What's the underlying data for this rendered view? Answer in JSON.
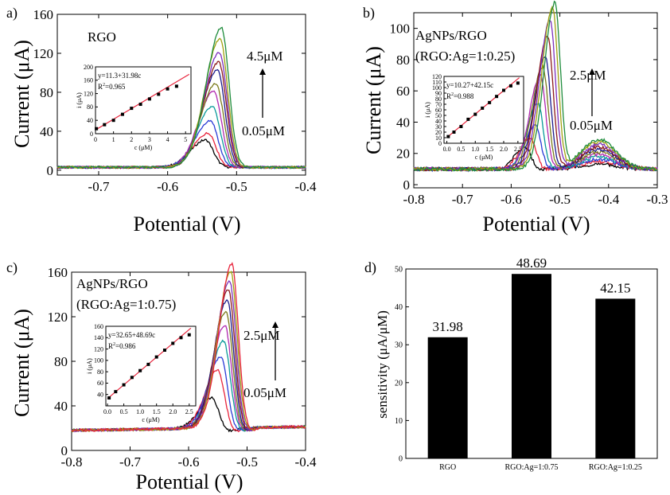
{
  "chart_data": [
    {
      "panel": "a)",
      "type": "line",
      "label": "RGO",
      "xlabel": "Potential (V)",
      "ylabel": "Current (μA)",
      "xlim": [
        -0.76,
        -0.4
      ],
      "ylim": [
        -5,
        160
      ],
      "xticks": [
        -0.7,
        -0.6,
        -0.5,
        -0.4
      ],
      "xtick_labels": [
        "-0.7",
        "-0.6",
        "-0.5",
        "-0.4"
      ],
      "yticks": [
        0,
        40,
        80,
        120,
        160
      ],
      "ytick_labels": [
        "0",
        "40",
        "80",
        "120",
        "160"
      ],
      "baseline": 3,
      "peak_x": [
        -0.545,
        -0.541,
        -0.538,
        -0.535,
        -0.533,
        -0.53,
        -0.528,
        -0.526,
        -0.525,
        -0.524,
        -0.522
      ],
      "peak_heights": [
        28,
        35,
        48,
        62,
        78,
        86,
        100,
        108,
        118,
        132,
        143
      ],
      "colors": [
        "#000000",
        "#e8243c",
        "#2a3bd6",
        "#0a9a9a",
        "#b028b0",
        "#7a7a1a",
        "#1a1a8c",
        "#8c1a1a",
        "#7b2fbd",
        "#a1a110",
        "#1e8c3c"
      ],
      "annotation_top": "4.5μM",
      "annotation_bottom": "0.05μM",
      "inset": {
        "equation": "y=11.3+31.98c",
        "r2_prefix": "R",
        "r2_exp": "2",
        "r2_value": "=0.965",
        "xlabel": "c (μM)",
        "ylabel": "i (μA)",
        "xlim": [
          0,
          5.3
        ],
        "ylim": [
          0,
          200
        ],
        "xticks": [
          0,
          1,
          2,
          3,
          4,
          5
        ],
        "xtick_labels": [
          "0",
          "1",
          "2",
          "3",
          "4",
          "5"
        ],
        "yticks": [
          0,
          40,
          80,
          120,
          160,
          200
        ],
        "ytick_labels": [
          "0",
          "40",
          "80",
          "120",
          "160",
          "200"
        ],
        "points_x": [
          0.05,
          0.5,
          1,
          1.5,
          2,
          2.5,
          3,
          3.5,
          4,
          4.5
        ],
        "points_y": [
          15,
          27,
          40,
          58,
          76,
          88,
          104,
          118,
          134,
          142
        ],
        "fit_intercept": 11.3,
        "fit_slope": 31.98,
        "fit_range": [
          0,
          5.2
        ]
      }
    },
    {
      "panel": "b)",
      "type": "line",
      "label_line1": "AgNPs/RGO",
      "label_line2": "(RGO:Ag=1:0.25)",
      "xlabel": "Potential (V)",
      "ylabel": "Current (μA)",
      "xlim": [
        -0.8,
        -0.3
      ],
      "ylim": [
        -2,
        110
      ],
      "xticks": [
        -0.8,
        -0.7,
        -0.6,
        -0.5,
        -0.4,
        -0.3
      ],
      "xtick_labels": [
        "-0.8",
        "-0.7",
        "-0.6",
        "-0.5",
        "-0.4",
        "-0.3"
      ],
      "yticks": [
        0,
        20,
        40,
        60,
        80,
        100
      ],
      "ytick_labels": [
        "0",
        "20",
        "40",
        "60",
        "80",
        "100"
      ],
      "baseline": 10,
      "peak_x": [
        -0.57,
        -0.56,
        -0.55,
        -0.545,
        -0.54,
        -0.535,
        -0.53,
        -0.525,
        -0.52,
        -0.515,
        -0.51
      ],
      "peak_heights": [
        14,
        20,
        28,
        42,
        60,
        65,
        72,
        85,
        95,
        103,
        106
      ],
      "colors": [
        "#000000",
        "#e8243c",
        "#2a3bd6",
        "#0a9a9a",
        "#b028b0",
        "#7a7a1a",
        "#1a1a8c",
        "#8c1a1a",
        "#7b2fbd",
        "#a1a110",
        "#1e8c3c"
      ],
      "annotation_top": "2.5μM",
      "annotation_bottom": "0.05μM",
      "inset": {
        "equation": "y=10.27+42.15c",
        "r2_prefix": "R",
        "r2_exp": "2",
        "r2_value": "=0.988",
        "xlabel": "c (μM)",
        "ylabel": "i (μA)",
        "xlim": [
          -0.1,
          2.7
        ],
        "ylim": [
          0,
          120
        ],
        "xticks": [
          0,
          0.5,
          1,
          1.5,
          2,
          2.5
        ],
        "xtick_labels": [
          "0.0",
          "0.5",
          "1.0",
          "1.5",
          "2.0",
          "2.5"
        ],
        "yticks": [
          0,
          10,
          20,
          30,
          40,
          50,
          60,
          70,
          80,
          90,
          100,
          110,
          120
        ],
        "ytick_labels": [
          "0",
          "10",
          "20",
          "30",
          "40",
          "50",
          "60",
          "70",
          "80",
          "90",
          "100",
          "110",
          "120"
        ],
        "points_x": [
          0.05,
          0.25,
          0.5,
          0.75,
          1,
          1.25,
          1.5,
          1.75,
          2,
          2.25,
          2.5
        ],
        "points_y": [
          12,
          20,
          30,
          43,
          52,
          63,
          73,
          84,
          95,
          103,
          108
        ],
        "fit_intercept": 10.27,
        "fit_slope": 42.15,
        "fit_range": [
          0,
          2.55
        ]
      }
    },
    {
      "panel": "c)",
      "type": "line",
      "label_line1": "AgNPs/RGO",
      "label_line2": "(RGO:Ag=1:0.75)",
      "xlabel": "Potential (V)",
      "ylabel": "Current (μA)",
      "xlim": [
        -0.8,
        -0.4
      ],
      "ylim": [
        0,
        160
      ],
      "xticks": [
        -0.8,
        -0.7,
        -0.6,
        -0.5,
        -0.4
      ],
      "xtick_labels": [
        "-0.8",
        "-0.7",
        "-0.6",
        "-0.5",
        "-0.4"
      ],
      "yticks": [
        0,
        40,
        80,
        120,
        160
      ],
      "ytick_labels": [
        "0",
        "40",
        "80",
        "120",
        "160"
      ],
      "baseline": 18,
      "peak_x": [
        -0.56,
        -0.55,
        -0.545,
        -0.54,
        -0.538,
        -0.536,
        -0.534,
        -0.532,
        -0.53,
        -0.528,
        -0.526
      ],
      "peak_heights": [
        27,
        52,
        64,
        78,
        92,
        105,
        115,
        124,
        132,
        140,
        147
      ],
      "colors": [
        "#000000",
        "#e8243c",
        "#2a3bd6",
        "#0a9a9a",
        "#b028b0",
        "#7a7a1a",
        "#1a1a8c",
        "#8c1a1a",
        "#7b2fbd",
        "#a1a110",
        "#e8243c"
      ],
      "annotation_top": "2.5μM",
      "annotation_bottom": "0.05μM",
      "inset": {
        "equation": "y=32.65+48.69c",
        "r2_prefix": "R",
        "r2_exp": "2",
        "r2_value": "=0.986",
        "xlabel": "c (μM)",
        "ylabel": "i (μA)",
        "xlim": [
          -0.05,
          2.7
        ],
        "ylim": [
          20,
          160
        ],
        "xticks": [
          0,
          0.5,
          1,
          1.5,
          2,
          2.5
        ],
        "xtick_labels": [
          "0.0",
          "0.5",
          "1.0",
          "1.5",
          "2.0",
          "2.5"
        ],
        "yticks": [
          40,
          60,
          80,
          100,
          120,
          140,
          160
        ],
        "ytick_labels": [
          "40",
          "60",
          "80",
          "100",
          "120",
          "140",
          "160"
        ],
        "points_x": [
          0.05,
          0.25,
          0.5,
          0.75,
          1,
          1.25,
          1.5,
          1.75,
          2,
          2.25,
          2.5
        ],
        "points_y": [
          34,
          45,
          57,
          70,
          82,
          93,
          106,
          118,
          130,
          140,
          145
        ],
        "fit_intercept": 32.65,
        "fit_slope": 48.69,
        "fit_range": [
          0,
          2.55
        ]
      }
    },
    {
      "panel": "d)",
      "type": "bar",
      "categories": [
        "RGO",
        "RGO:Ag=1:0.75",
        "RGO:Ag=1:0.25"
      ],
      "values": [
        31.98,
        48.69,
        42.15
      ],
      "value_labels": [
        "31.98",
        "48.69",
        "42.15"
      ],
      "ylabel": "sensitivity (μA/μM)",
      "xlabel": "",
      "ylim": [
        0,
        50
      ],
      "yticks": [
        0,
        10,
        20,
        30,
        40,
        50
      ],
      "ytick_labels": [
        "0",
        "10",
        "20",
        "30",
        "40",
        "50"
      ],
      "bar_color": "#000000"
    }
  ]
}
